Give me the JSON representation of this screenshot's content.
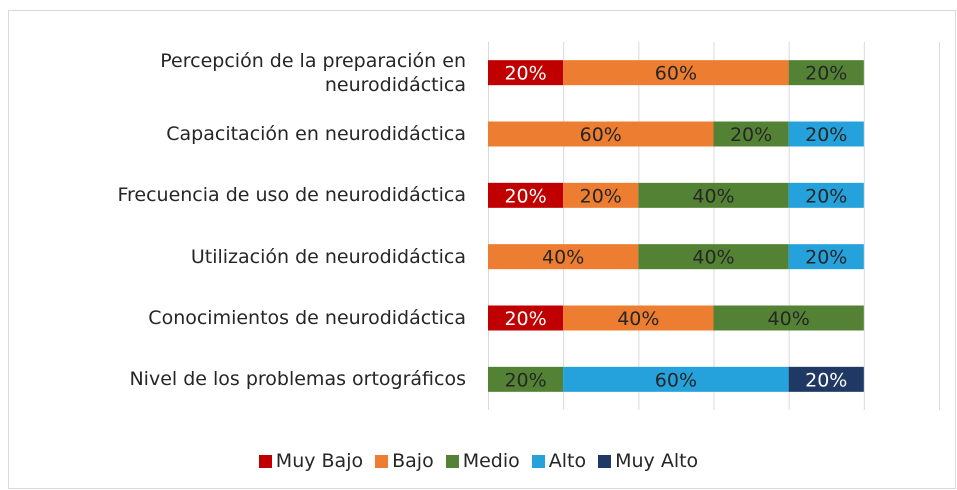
{
  "chart_data": {
    "type": "stacked_barh",
    "categories": [
      "Percepción de la preparación en neurodidáctica",
      "Capacitación en neurodidáctica",
      "Frecuencia de uso de neurodidáctica",
      "Utilización de neurodidáctica",
      "Conocimientos de neurodidáctica",
      "Nivel de los problemas ortográficos"
    ],
    "series": [
      {
        "name": "Muy Bajo",
        "color": "#c00000",
        "label_color": "#ffffff",
        "values": [
          20,
          0,
          20,
          0,
          20,
          0
        ],
        "value_labels": [
          "20%",
          null,
          "20%",
          null,
          "20%",
          null
        ]
      },
      {
        "name": "Bajo",
        "color": "#ed7d31",
        "label_color": "#262626",
        "values": [
          60,
          60,
          20,
          40,
          40,
          0
        ],
        "value_labels": [
          "60%",
          "60%",
          "20%",
          "40%",
          "40%",
          null
        ]
      },
      {
        "name": "Medio",
        "color": "#548235",
        "label_color": "#262626",
        "values": [
          20,
          20,
          40,
          40,
          40,
          20
        ],
        "value_labels": [
          "20%",
          "20%",
          "40%",
          "40%",
          "40%",
          "20%"
        ]
      },
      {
        "name": "Alto",
        "color": "#25a2db",
        "label_color": "#262626",
        "values": [
          0,
          20,
          20,
          20,
          0,
          60
        ],
        "value_labels": [
          null,
          "20%",
          "20%",
          "20%",
          null,
          "60%"
        ]
      },
      {
        "name": "Muy Alto",
        "color": "#1f3864",
        "label_color": "#ffffff",
        "values": [
          0,
          0,
          0,
          0,
          0,
          20
        ],
        "value_labels": [
          null,
          null,
          null,
          null,
          null,
          "20%"
        ]
      }
    ],
    "xlim": [
      0,
      120
    ],
    "xticks": [
      0,
      20,
      40,
      60,
      80,
      100,
      120
    ],
    "grid": true,
    "legend": "bottom"
  }
}
